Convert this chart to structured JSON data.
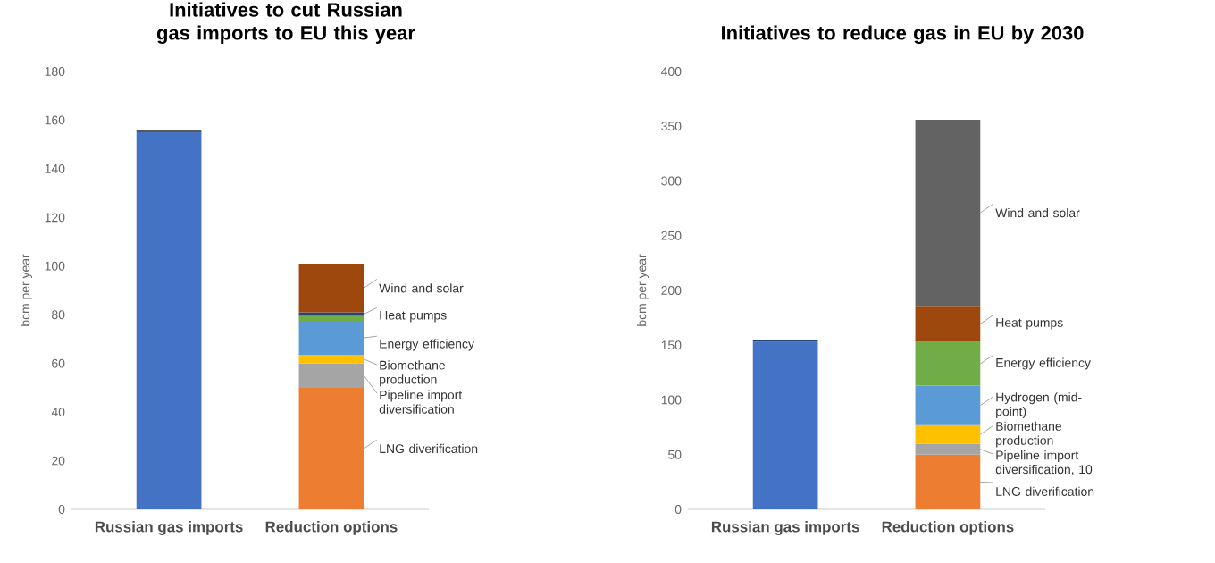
{
  "chart_data": [
    {
      "type": "bar",
      "stacked": true,
      "title": "Initiatives to cut Russian gas imports to EU this year",
      "ylabel": "bcm per year",
      "categories": [
        "Russian gas imports",
        "Reduction options"
      ],
      "ylim": [
        0,
        180
      ],
      "yticks": [
        0,
        20,
        40,
        60,
        80,
        100,
        120,
        140,
        160,
        180
      ],
      "series": [
        {
          "color": "#4472c4",
          "values": [
            155,
            null
          ]
        },
        {
          "color": "#595959",
          "values": [
            1,
            null
          ]
        },
        {
          "name": "LNG diverification",
          "color": "#ed7d31",
          "values": [
            null,
            50
          ]
        },
        {
          "name": "Pipeline import diversification",
          "color": "#a5a5a5",
          "values": [
            null,
            10
          ]
        },
        {
          "name": "Biomethane production",
          "color": "#ffc000",
          "values": [
            null,
            3.5
          ]
        },
        {
          "name": "Energy efficiency",
          "color": "#5b9bd5",
          "values": [
            null,
            14
          ]
        },
        {
          "color": "#70ad47",
          "values": [
            null,
            2
          ]
        },
        {
          "name": "Heat pumps",
          "color": "#264478",
          "values": [
            null,
            1.5
          ]
        },
        {
          "name": "Wind and solar",
          "color": "#9e480e",
          "values": [
            null,
            20
          ]
        }
      ]
    },
    {
      "type": "bar",
      "stacked": true,
      "title": "Initiatives to reduce gas in EU by 2030",
      "ylabel": "bcm per year",
      "categories": [
        "Russian gas imports",
        "Reduction options"
      ],
      "ylim": [
        0,
        400
      ],
      "yticks": [
        0,
        50,
        100,
        150,
        200,
        250,
        300,
        350,
        400
      ],
      "series": [
        {
          "color": "#4472c4",
          "values": [
            153,
            null
          ]
        },
        {
          "color": "#264478",
          "values": [
            2,
            null
          ]
        },
        {
          "name": "LNG diverification",
          "color": "#ed7d31",
          "values": [
            null,
            50
          ]
        },
        {
          "name": "Pipeline import diversification, 10",
          "color": "#a5a5a5",
          "values": [
            null,
            10
          ]
        },
        {
          "name": "Biomethane production",
          "color": "#ffc000",
          "values": [
            null,
            17
          ]
        },
        {
          "name": "Hydrogen (mid-point)",
          "color": "#5b9bd5",
          "values": [
            null,
            36
          ]
        },
        {
          "name": "Energy efficiency",
          "color": "#70ad47",
          "values": [
            null,
            40
          ]
        },
        {
          "name": "Heat pumps",
          "color": "#9e480e",
          "values": [
            null,
            33
          ]
        },
        {
          "name": "Wind and solar",
          "color": "#636363",
          "values": [
            null,
            170
          ]
        }
      ]
    }
  ]
}
